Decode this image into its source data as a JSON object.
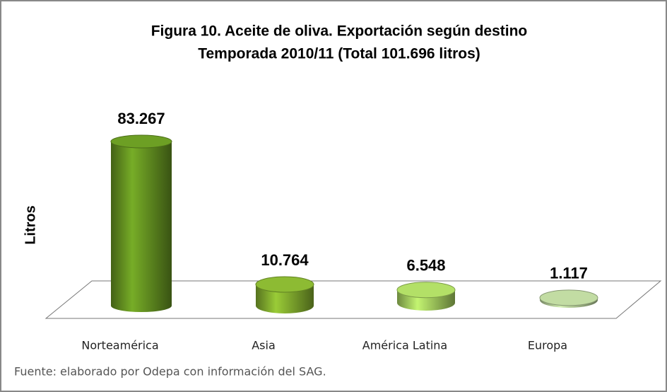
{
  "chart_data": {
    "type": "cylinder-bar",
    "title": "Figura 10. Aceite de oliva. Exportación según destino",
    "subtitle": "Temporada 2010/11 (Total 101.696 litros)",
    "y_label": "Litros",
    "categories": [
      "Norteamérica",
      "Asia",
      "América Latina",
      "Europa"
    ],
    "values": [
      83267,
      10764,
      6548,
      1117
    ],
    "value_labels": [
      "83.267",
      "10.764",
      "6.548",
      "1.117"
    ],
    "colors": [
      "#5f8a1f",
      "#7ba32c",
      "#9cc35a",
      "#a9bf8e"
    ],
    "source": "Fuente: elaborado por Odepa con información del SAG."
  }
}
